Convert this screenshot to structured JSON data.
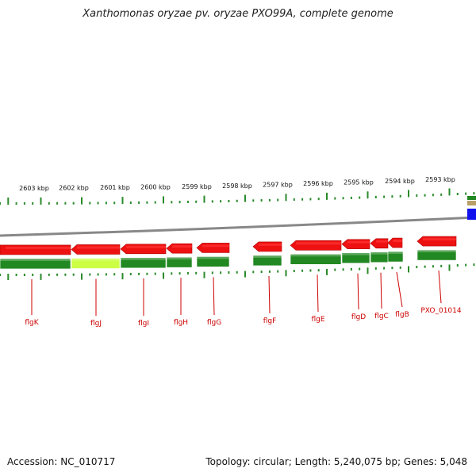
{
  "title": "Xanthomonas oryzae pv. oryzae PXO99A, complete genome",
  "footer": {
    "accession": "Accession: NC_010717",
    "summary": "Topology: circular; Length: 5,240,075 bp; Genes: 5,048"
  },
  "colors": {
    "cds": "#ee1111",
    "cds_highlight": "#ff3333",
    "gene_track": "#228822",
    "gene_track_selected": "#ccff44",
    "tick": "#2a8a2a",
    "backbone": "#888888",
    "label": "#cc0000"
  },
  "ticks": [
    "2603 kbp",
    "2602 kbp",
    "2601 kbp",
    "2600 kbp",
    "2599 kbp",
    "2598 kbp",
    "2597 kbp",
    "2596 kbp",
    "2595 kbp",
    "2594 kbp",
    "2593 kbp"
  ],
  "genes": [
    "flgK",
    "flgJ",
    "flgI",
    "flgH",
    "flgG",
    "flgF",
    "flgE",
    "flgD",
    "flgC",
    "flgB",
    "PXO_01014"
  ],
  "selected_gene": "flgJ"
}
